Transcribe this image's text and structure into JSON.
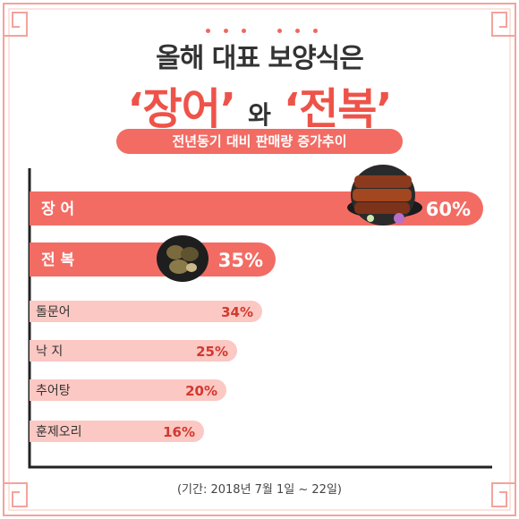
{
  "header": {
    "title_line1": "올해 대표 보양식은",
    "highlight1": "‘장어’",
    "connector": "와",
    "highlight2": "‘전복’",
    "subtitle": "전년동기 대비 판매량 증가추이"
  },
  "chart_data": {
    "type": "bar",
    "orientation": "horizontal",
    "categories": [
      "장 어",
      "전 복",
      "돌문어",
      "낙 지",
      "추어탕",
      "훈제오리"
    ],
    "values": [
      60,
      35,
      34,
      25,
      20,
      16
    ],
    "value_labels": [
      "60%",
      "35%",
      "34%",
      "25%",
      "20%",
      "16%"
    ],
    "title": "전년동기 대비 판매량 증가추이",
    "xlim": [
      0,
      60
    ],
    "grid": false,
    "legend": "none"
  },
  "footer": {
    "note": "(기간: 2018년 7월 1일 ~ 22일)"
  },
  "colors": {
    "accent": "#ee5349",
    "primary_bar": "#f26c64",
    "secondary_bar": "#fbc8c3",
    "axis": "#222222",
    "frame": "#f3a39c"
  },
  "icons": [
    "grilled-eel-dish-icon",
    "abalone-dish-icon"
  ]
}
